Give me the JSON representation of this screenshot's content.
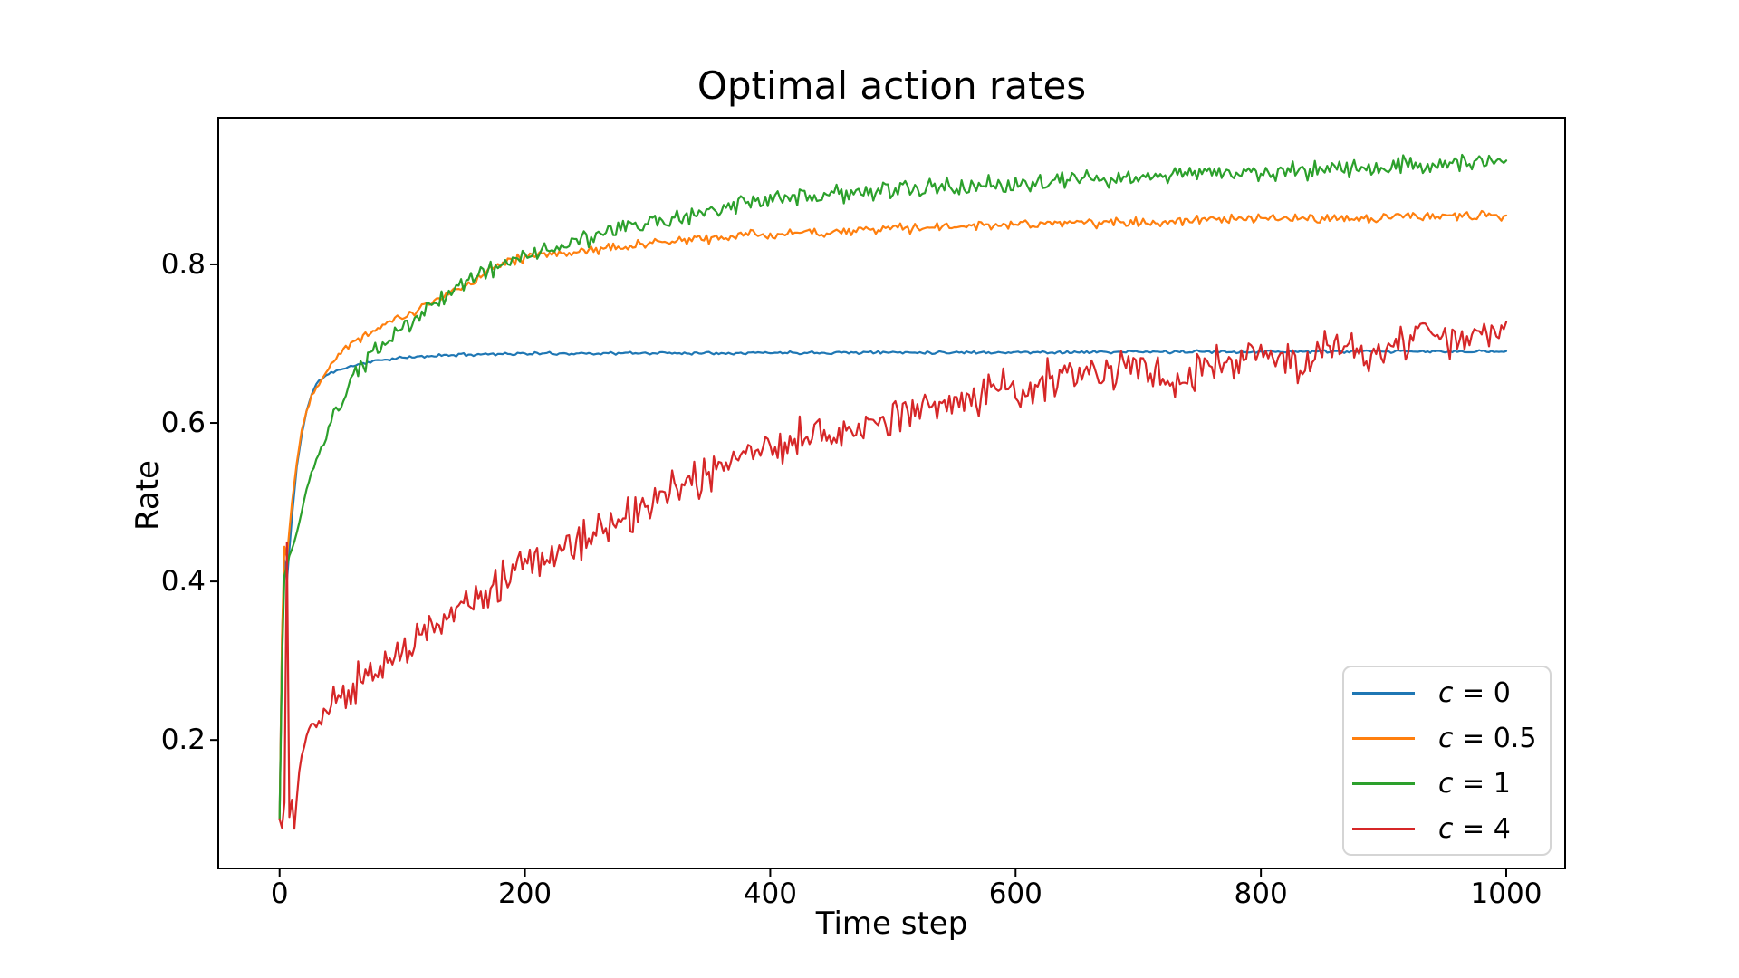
{
  "figure": {
    "background": "#ffffff"
  },
  "colors": {
    "axis": "#000000",
    "legend_border": "#d5d5d5",
    "blue": "#1f77b4",
    "orange": "#ff7f0e",
    "green": "#2ca02c",
    "red": "#d62728"
  },
  "chart_data": {
    "type": "line",
    "title": "Optimal action rates",
    "xlabel": "Time step",
    "ylabel": "Rate",
    "xlim": [
      -50,
      1048
    ],
    "ylim": [
      0.038,
      0.985
    ],
    "grid": false,
    "xticks": {
      "values": [
        0,
        200,
        400,
        600,
        800,
        1000
      ],
      "labels": [
        "0",
        "200",
        "400",
        "600",
        "800",
        "1000"
      ]
    },
    "yticks": {
      "values": [
        0.2,
        0.4,
        0.6,
        0.8
      ],
      "labels": [
        "0.2",
        "0.4",
        "0.6",
        "0.8"
      ]
    },
    "legend": {
      "position": "lower right",
      "entries": [
        "c = 0",
        "c = 0.5",
        "c = 1",
        "c = 4"
      ]
    },
    "series": [
      {
        "name": "c = 0",
        "c": 0,
        "color": "#1f77b4",
        "noise": 0.0015,
        "seed": 11,
        "keypoints": [
          [
            0,
            0.1
          ],
          [
            3,
            0.44
          ],
          [
            6,
            0.4
          ],
          [
            10,
            0.48
          ],
          [
            14,
            0.545
          ],
          [
            18,
            0.585
          ],
          [
            22,
            0.615
          ],
          [
            26,
            0.635
          ],
          [
            30,
            0.65
          ],
          [
            38,
            0.66
          ],
          [
            46,
            0.666
          ],
          [
            55,
            0.67
          ],
          [
            70,
            0.676
          ],
          [
            85,
            0.68
          ],
          [
            100,
            0.682
          ],
          [
            130,
            0.685
          ],
          [
            170,
            0.687
          ],
          [
            220,
            0.6875
          ],
          [
            300,
            0.688
          ],
          [
            400,
            0.6885
          ],
          [
            500,
            0.689
          ],
          [
            600,
            0.689
          ],
          [
            700,
            0.6895
          ],
          [
            800,
            0.69
          ],
          [
            900,
            0.69
          ],
          [
            1000,
            0.69
          ]
        ]
      },
      {
        "name": "c = 0.5",
        "c": 0.5,
        "color": "#ff7f0e",
        "noise": 0.005,
        "seed": 22,
        "keypoints": [
          [
            0,
            0.1
          ],
          [
            3,
            0.45
          ],
          [
            6,
            0.43
          ],
          [
            10,
            0.5
          ],
          [
            14,
            0.55
          ],
          [
            18,
            0.59
          ],
          [
            22,
            0.615
          ],
          [
            26,
            0.635
          ],
          [
            30,
            0.645
          ],
          [
            36,
            0.662
          ],
          [
            42,
            0.676
          ],
          [
            50,
            0.69
          ],
          [
            58,
            0.7
          ],
          [
            66,
            0.708
          ],
          [
            75,
            0.716
          ],
          [
            85,
            0.724
          ],
          [
            95,
            0.731
          ],
          [
            105,
            0.737
          ],
          [
            115,
            0.745
          ],
          [
            125,
            0.752
          ],
          [
            135,
            0.76
          ],
          [
            145,
            0.768
          ],
          [
            155,
            0.776
          ],
          [
            165,
            0.788
          ],
          [
            175,
            0.8
          ],
          [
            185,
            0.804
          ],
          [
            195,
            0.807
          ],
          [
            210,
            0.81
          ],
          [
            230,
            0.814
          ],
          [
            250,
            0.818
          ],
          [
            270,
            0.821
          ],
          [
            290,
            0.824
          ],
          [
            310,
            0.827
          ],
          [
            330,
            0.83
          ],
          [
            350,
            0.833
          ],
          [
            375,
            0.836
          ],
          [
            400,
            0.838
          ],
          [
            430,
            0.84
          ],
          [
            460,
            0.842
          ],
          [
            500,
            0.845
          ],
          [
            540,
            0.847
          ],
          [
            580,
            0.849
          ],
          [
            620,
            0.851
          ],
          [
            660,
            0.852
          ],
          [
            700,
            0.854
          ],
          [
            740,
            0.855
          ],
          [
            780,
            0.856
          ],
          [
            820,
            0.857
          ],
          [
            860,
            0.858
          ],
          [
            900,
            0.859
          ],
          [
            950,
            0.86
          ],
          [
            1000,
            0.862
          ]
        ]
      },
      {
        "name": "c = 1",
        "c": 1,
        "color": "#2ca02c",
        "noise": 0.009,
        "seed": 33,
        "keypoints": [
          [
            0,
            0.1
          ],
          [
            3,
            0.4
          ],
          [
            6,
            0.42
          ],
          [
            10,
            0.44
          ],
          [
            14,
            0.46
          ],
          [
            18,
            0.49
          ],
          [
            22,
            0.515
          ],
          [
            26,
            0.535
          ],
          [
            30,
            0.55
          ],
          [
            36,
            0.575
          ],
          [
            42,
            0.6
          ],
          [
            48,
            0.62
          ],
          [
            55,
            0.64
          ],
          [
            62,
            0.66
          ],
          [
            70,
            0.677
          ],
          [
            78,
            0.69
          ],
          [
            86,
            0.7
          ],
          [
            95,
            0.712
          ],
          [
            105,
            0.724
          ],
          [
            115,
            0.737
          ],
          [
            125,
            0.75
          ],
          [
            135,
            0.76
          ],
          [
            145,
            0.772
          ],
          [
            155,
            0.782
          ],
          [
            165,
            0.79
          ],
          [
            175,
            0.796
          ],
          [
            185,
            0.802
          ],
          [
            195,
            0.808
          ],
          [
            210,
            0.815
          ],
          [
            225,
            0.822
          ],
          [
            240,
            0.828
          ],
          [
            260,
            0.836
          ],
          [
            280,
            0.845
          ],
          [
            300,
            0.852
          ],
          [
            320,
            0.858
          ],
          [
            340,
            0.864
          ],
          [
            360,
            0.87
          ],
          [
            380,
            0.875
          ],
          [
            400,
            0.88
          ],
          [
            430,
            0.885
          ],
          [
            460,
            0.889
          ],
          [
            500,
            0.893
          ],
          [
            540,
            0.897
          ],
          [
            580,
            0.9
          ],
          [
            620,
            0.904
          ],
          [
            660,
            0.907
          ],
          [
            700,
            0.91
          ],
          [
            740,
            0.913
          ],
          [
            780,
            0.916
          ],
          [
            820,
            0.918
          ],
          [
            860,
            0.92
          ],
          [
            900,
            0.923
          ],
          [
            950,
            0.927
          ],
          [
            1000,
            0.93
          ]
        ]
      },
      {
        "name": "c = 4",
        "c": 4,
        "color": "#d62728",
        "noise": 0.02,
        "seed": 44,
        "keypoints": [
          [
            0,
            0.1
          ],
          [
            2,
            0.09
          ],
          [
            4,
            0.12
          ],
          [
            6,
            0.45
          ],
          [
            8,
            0.1
          ],
          [
            10,
            0.13
          ],
          [
            12,
            0.082
          ],
          [
            15,
            0.15
          ],
          [
            18,
            0.18
          ],
          [
            22,
            0.205
          ],
          [
            26,
            0.215
          ],
          [
            30,
            0.225
          ],
          [
            36,
            0.235
          ],
          [
            42,
            0.243
          ],
          [
            50,
            0.253
          ],
          [
            60,
            0.266
          ],
          [
            70,
            0.278
          ],
          [
            80,
            0.29
          ],
          [
            90,
            0.3
          ],
          [
            100,
            0.315
          ],
          [
            115,
            0.33
          ],
          [
            130,
            0.347
          ],
          [
            145,
            0.362
          ],
          [
            160,
            0.378
          ],
          [
            175,
            0.395
          ],
          [
            190,
            0.412
          ],
          [
            200,
            0.422
          ],
          [
            215,
            0.432
          ],
          [
            230,
            0.44
          ],
          [
            245,
            0.448
          ],
          [
            260,
            0.458
          ],
          [
            275,
            0.472
          ],
          [
            290,
            0.487
          ],
          [
            300,
            0.497
          ],
          [
            315,
            0.508
          ],
          [
            330,
            0.52
          ],
          [
            345,
            0.532
          ],
          [
            360,
            0.545
          ],
          [
            375,
            0.555
          ],
          [
            390,
            0.565
          ],
          [
            400,
            0.572
          ],
          [
            420,
            0.578
          ],
          [
            440,
            0.585
          ],
          [
            460,
            0.59
          ],
          [
            480,
            0.6
          ],
          [
            500,
            0.61
          ],
          [
            520,
            0.618
          ],
          [
            540,
            0.625
          ],
          [
            560,
            0.632
          ],
          [
            580,
            0.64
          ],
          [
            600,
            0.647
          ],
          [
            620,
            0.652
          ],
          [
            640,
            0.658
          ],
          [
            660,
            0.663
          ],
          [
            680,
            0.667
          ],
          [
            700,
            0.67
          ],
          [
            715,
            0.66
          ],
          [
            730,
            0.655
          ],
          [
            745,
            0.665
          ],
          [
            760,
            0.675
          ],
          [
            775,
            0.68
          ],
          [
            790,
            0.685
          ],
          [
            805,
            0.678
          ],
          [
            820,
            0.683
          ],
          [
            835,
            0.67
          ],
          [
            850,
            0.69
          ],
          [
            865,
            0.695
          ],
          [
            880,
            0.685
          ],
          [
            895,
            0.69
          ],
          [
            910,
            0.7
          ],
          [
            925,
            0.71
          ],
          [
            940,
            0.725
          ],
          [
            950,
            0.7
          ],
          [
            960,
            0.695
          ],
          [
            970,
            0.705
          ],
          [
            980,
            0.715
          ],
          [
            990,
            0.712
          ],
          [
            1000,
            0.708
          ]
        ]
      }
    ]
  }
}
